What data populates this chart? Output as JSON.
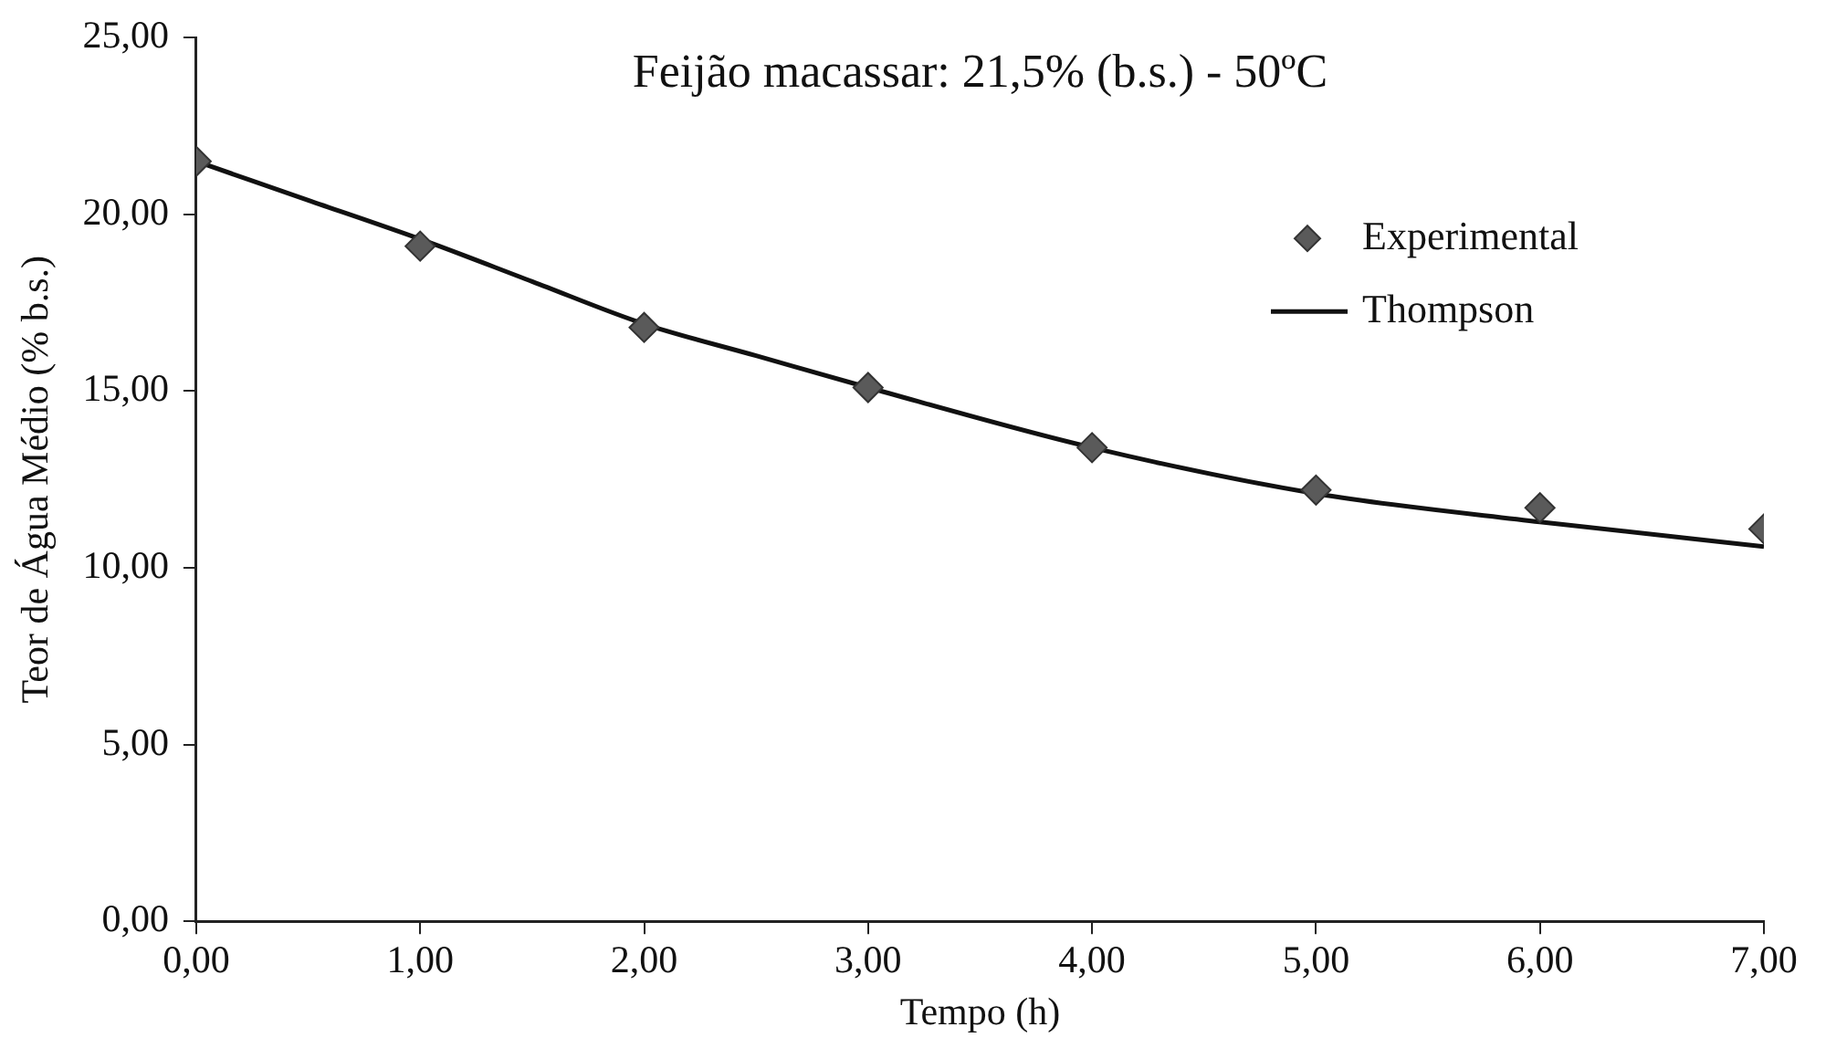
{
  "chart_data": {
    "type": "scatter",
    "title": "Feijão macassar: 21,5% (b.s.) - 50ºC",
    "xlabel": "Tempo (h)",
    "ylabel": "Teor de Água Médio (% b.s.)",
    "xlim": [
      0,
      7
    ],
    "xticks": [
      {
        "value": 0,
        "label": "0,00"
      },
      {
        "value": 1,
        "label": "1,00"
      },
      {
        "value": 2,
        "label": "2,00"
      },
      {
        "value": 3,
        "label": "3,00"
      },
      {
        "value": 4,
        "label": "4,00"
      },
      {
        "value": 5,
        "label": "5,00"
      },
      {
        "value": 6,
        "label": "6,00"
      },
      {
        "value": 7,
        "label": "7,00"
      }
    ],
    "ylim": [
      0,
      25
    ],
    "yticks": [
      {
        "value": 0,
        "label": "0,00"
      },
      {
        "value": 5,
        "label": "5,00"
      },
      {
        "value": 10,
        "label": "10,00"
      },
      {
        "value": 15,
        "label": "15,00"
      },
      {
        "value": 20,
        "label": "20,00"
      },
      {
        "value": 25,
        "label": "25,00"
      }
    ],
    "grid": false,
    "legend": "top right",
    "series": [
      {
        "name": "Experimental",
        "marker": "diamond",
        "color": "#5a5a5a",
        "x": [
          0,
          1,
          2,
          3,
          4,
          5,
          6,
          7
        ],
        "values": [
          21.5,
          19.1,
          16.8,
          15.1,
          13.4,
          12.2,
          11.7,
          11.1
        ]
      },
      {
        "name": "Thompson",
        "type": "line",
        "marker": "none",
        "line_style": "solid",
        "color": "#111111",
        "x": [
          0,
          0.5,
          1,
          1.5,
          2,
          2.5,
          3,
          4,
          5,
          6,
          7
        ],
        "values": [
          21.5,
          20.4,
          19.3,
          18.1,
          16.9,
          16.0,
          15.1,
          13.4,
          12.1,
          11.3,
          10.6
        ]
      }
    ]
  }
}
